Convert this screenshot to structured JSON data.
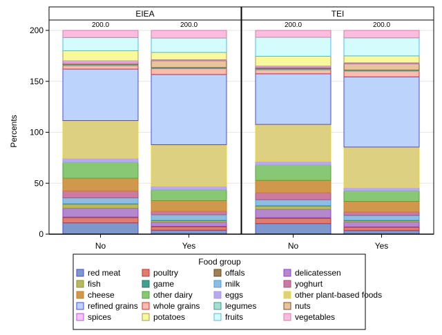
{
  "chart_data": {
    "type": "bar",
    "stacked": true,
    "ylabel": "Percents",
    "ylim": [
      0,
      200
    ],
    "yticks": [
      0,
      50,
      100,
      150,
      200
    ],
    "grid": true,
    "panels": [
      "EIEA",
      "TEI"
    ],
    "categories": [
      "No",
      "Yes"
    ],
    "totals_label": "200.0",
    "legend": {
      "title": "Food group",
      "placement": "bottom"
    },
    "series": [
      {
        "name": "red meat",
        "fill": "#7e97cc",
        "stroke": "#4b4bdc",
        "values": {
          "EIEA": [
            11.1,
            3.9
          ],
          "TEI": [
            10.4,
            3.6
          ]
        }
      },
      {
        "name": "poultry",
        "fill": "#e07b70",
        "stroke": "#d02b2b",
        "values": {
          "EIEA": [
            5.2,
            3.4
          ],
          "TEI": [
            5.2,
            3.2
          ]
        }
      },
      {
        "name": "offals",
        "fill": "#a08050",
        "stroke": "#6b4a1f",
        "values": {
          "EIEA": [
            0.5,
            0.4
          ],
          "TEI": [
            0.5,
            0.4
          ]
        }
      },
      {
        "name": "delicatessen",
        "fill": "#b388cc",
        "stroke": "#9b3ee0",
        "values": {
          "EIEA": [
            8.6,
            4.1
          ],
          "TEI": [
            8.2,
            4.8
          ]
        }
      },
      {
        "name": "fish",
        "fill": "#b8b860",
        "stroke": "#8a9a20",
        "values": {
          "EIEA": [
            4.1,
            1.6
          ],
          "TEI": [
            3.4,
            1.4
          ]
        }
      },
      {
        "name": "game",
        "fill": "#40a090",
        "stroke": "#1f7a6a",
        "values": {
          "EIEA": [
            0.3,
            0.2
          ],
          "TEI": [
            0.3,
            0.2
          ]
        }
      },
      {
        "name": "milk",
        "fill": "#90bce0",
        "stroke": "#3aa0f0",
        "values": {
          "EIEA": [
            5.8,
            5.4
          ],
          "TEI": [
            5.8,
            4.8
          ]
        }
      },
      {
        "name": "yoghurt",
        "fill": "#cc7aa0",
        "stroke": "#b05080",
        "values": {
          "EIEA": [
            6.8,
            3.4
          ],
          "TEI": [
            6.8,
            3.4
          ]
        }
      },
      {
        "name": "cheese",
        "fill": "#d0984c",
        "stroke": "#d07f10",
        "values": {
          "EIEA": [
            12.5,
            10.5
          ],
          "TEI": [
            12.2,
            10.4
          ]
        }
      },
      {
        "name": "other dairy",
        "fill": "#88c874",
        "stroke": "#50a838",
        "values": {
          "EIEA": [
            15.6,
            10.6
          ],
          "TEI": [
            15.0,
            10.2
          ]
        }
      },
      {
        "name": "eggs",
        "fill": "#b8a8f0",
        "stroke": "#a898f0",
        "values": {
          "EIEA": [
            4.1,
            3.5
          ],
          "TEI": [
            3.6,
            3.2
          ]
        }
      },
      {
        "name": "other plant-based foods",
        "fill": "#ddd080",
        "stroke": "#f0d820",
        "values": {
          "EIEA": [
            36.9,
            40.8
          ],
          "TEI": [
            36.3,
            39.9
          ]
        }
      },
      {
        "name": "refined grains",
        "fill": "#bcd3fc",
        "stroke": "#4a4ae8",
        "values": {
          "EIEA": [
            50.5,
            68.9
          ],
          "TEI": [
            49.7,
            68.9
          ]
        }
      },
      {
        "name": "whole grains",
        "fill": "#fbbcb0",
        "stroke": "#d83030",
        "values": {
          "EIEA": [
            3.5,
            5.9
          ],
          "TEI": [
            4.1,
            5.6
          ]
        }
      },
      {
        "name": "legumes",
        "fill": "#a8dcd0",
        "stroke": "#30a090",
        "values": {
          "EIEA": [
            1.0,
            0.9
          ],
          "TEI": [
            1.0,
            1.0
          ]
        }
      },
      {
        "name": "nuts",
        "fill": "#e8c49c",
        "stroke": "#7a5020",
        "values": {
          "EIEA": [
            1.5,
            6.8
          ],
          "TEI": [
            1.0,
            6.3
          ]
        }
      },
      {
        "name": "spices",
        "fill": "#f4c4f4",
        "stroke": "#c050f0",
        "values": {
          "EIEA": [
            2.0,
            0.9
          ],
          "TEI": [
            1.4,
            0.9
          ]
        }
      },
      {
        "name": "potatoes",
        "fill": "#f8f89c",
        "stroke": "#a0a040",
        "values": {
          "EIEA": [
            10.0,
            7.2
          ],
          "TEI": [
            9.7,
            6.8
          ]
        }
      },
      {
        "name": "fruits",
        "fill": "#d4fcfc",
        "stroke": "#50b8f8",
        "values": {
          "EIEA": [
            13.0,
            14.1
          ],
          "TEI": [
            18.6,
            17.7
          ]
        }
      },
      {
        "name": "vegetables",
        "fill": "#fcbce0",
        "stroke": "#d080a0",
        "values": {
          "EIEA": [
            7.0,
            7.5
          ],
          "TEI": [
            6.8,
            7.3
          ]
        }
      }
    ]
  }
}
